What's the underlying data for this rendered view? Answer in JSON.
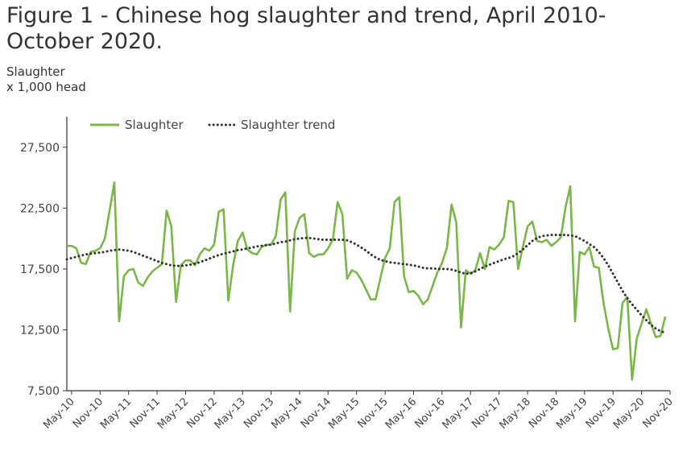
{
  "chart_data": {
    "type": "line",
    "title": "Figure 1 - Chinese hog slaughter and trend, April 2010-October 2020.",
    "ylabel_line1": "Slaughter",
    "ylabel_line2": "x 1,000 head",
    "ylim": [
      7500,
      30000
    ],
    "yticks": [
      7500,
      12500,
      17500,
      22500,
      27500
    ],
    "ytick_labels": [
      "7,500",
      "12,500",
      "17,500",
      "22,500",
      "27,500"
    ],
    "xtick_labels": [
      "May-10",
      "Nov-10",
      "May-11",
      "Nov-11",
      "May-12",
      "Nov-12",
      "May-13",
      "Nov-13",
      "May-14",
      "Nov-14",
      "May-15",
      "Nov-15",
      "May-16",
      "Nov-16",
      "May-17",
      "Nov-17",
      "May-18",
      "Nov-18",
      "May-19",
      "Nov-19",
      "May-20",
      "Nov-20"
    ],
    "x_start": "Apr-2010",
    "grid": false,
    "legend_position": "top-left",
    "series": [
      {
        "name": "Slaughter",
        "color": "#7ab648",
        "style": "solid",
        "values": [
          19400,
          19400,
          19200,
          18000,
          17900,
          18900,
          19000,
          19200,
          20000,
          22300,
          24600,
          13200,
          16900,
          17400,
          17500,
          16400,
          16100,
          16800,
          17300,
          17600,
          17900,
          22300,
          21000,
          14800,
          17800,
          18200,
          18200,
          17800,
          18700,
          19200,
          19000,
          19500,
          22200,
          22400,
          14900,
          17800,
          19800,
          20500,
          19100,
          18800,
          18700,
          19300,
          19500,
          19500,
          20200,
          23200,
          23800,
          14000,
          20600,
          21700,
          22000,
          18800,
          18500,
          18700,
          18700,
          19200,
          19900,
          23000,
          22000,
          16700,
          17400,
          17200,
          16600,
          15800,
          15000,
          15000,
          16700,
          18400,
          19200,
          23000,
          23400,
          16900,
          15600,
          15700,
          15300,
          14600,
          15000,
          16100,
          17200,
          18000,
          19200,
          22800,
          21300,
          12700,
          17400,
          17100,
          17400,
          18800,
          17500,
          19300,
          19100,
          19500,
          20100,
          23100,
          23000,
          17500,
          19300,
          21000,
          21400,
          19800,
          19700,
          19900,
          19400,
          19700,
          20100,
          22600,
          24300,
          13200,
          18900,
          18700,
          19300,
          17700,
          17600,
          14700,
          12600,
          10900,
          11000,
          14700,
          15200,
          8400,
          11800,
          13000,
          14200,
          13000,
          11900,
          12000,
          13600
        ]
      },
      {
        "name": "Slaughter trend",
        "color": "#333333",
        "style": "dotted",
        "values": [
          18300,
          18400,
          18500,
          18600,
          18700,
          18750,
          18800,
          18850,
          18900,
          19000,
          19050,
          19100,
          19050,
          19000,
          18900,
          18750,
          18600,
          18450,
          18300,
          18150,
          18000,
          17900,
          17800,
          17750,
          17750,
          17800,
          17850,
          17950,
          18050,
          18200,
          18350,
          18500,
          18650,
          18750,
          18850,
          18950,
          19050,
          19100,
          19200,
          19250,
          19350,
          19400,
          19450,
          19500,
          19600,
          19700,
          19750,
          19850,
          19950,
          20000,
          20050,
          20050,
          20000,
          19950,
          19900,
          19900,
          19900,
          19900,
          19900,
          19850,
          19700,
          19500,
          19250,
          19000,
          18700,
          18450,
          18250,
          18150,
          18050,
          18000,
          17950,
          17900,
          17850,
          17800,
          17700,
          17600,
          17550,
          17550,
          17500,
          17500,
          17500,
          17450,
          17350,
          17200,
          17100,
          17150,
          17300,
          17500,
          17700,
          17850,
          18000,
          18150,
          18300,
          18400,
          18550,
          18800,
          19100,
          19450,
          19800,
          20050,
          20200,
          20250,
          20300,
          20300,
          20300,
          20300,
          20250,
          20200,
          20000,
          19800,
          19550,
          19300,
          18900,
          18400,
          17800,
          17100,
          16400,
          15700,
          15100,
          14600,
          14150,
          13700,
          13300,
          12900,
          12600,
          12400,
          12250
        ]
      }
    ]
  }
}
